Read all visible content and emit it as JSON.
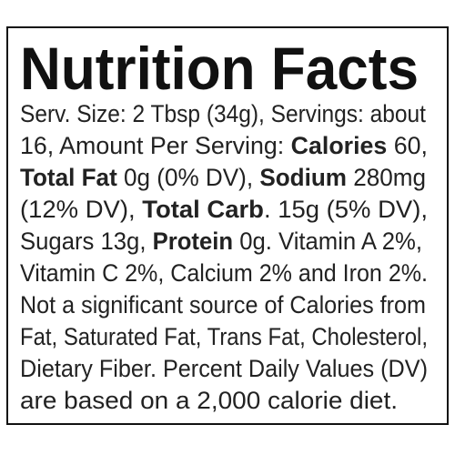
{
  "title": "Nutrition Facts",
  "lines": [
    [
      {
        "text": "Serv. Size: 2 Tbsp (34g), Servings: about"
      }
    ],
    [
      {
        "text": "16, Amount Per Serving: "
      },
      {
        "text": "Calories",
        "bold": true
      },
      {
        "text": " 60,"
      }
    ],
    [
      {
        "text": "Total Fat",
        "bold": true
      },
      {
        "text": " 0g (0% DV), "
      },
      {
        "text": "Sodium",
        "bold": true
      },
      {
        "text": " 280mg"
      }
    ],
    [
      {
        "text": "(12% DV), "
      },
      {
        "text": "Total Carb",
        "bold": true
      },
      {
        "text": ". 15g (5% DV),"
      }
    ],
    [
      {
        "text": "Sugars 13g, "
      },
      {
        "text": "Protein",
        "bold": true
      },
      {
        "text": " 0g. Vitamin A 2%,"
      }
    ],
    [
      {
        "text": "Vitamin C 2%, Calcium 2% and Iron 2%."
      }
    ],
    [
      {
        "text": "Not a significant source of Calories from"
      }
    ],
    [
      {
        "text": "Fat, Saturated Fat, Trans Fat, Cholesterol,"
      }
    ],
    [
      {
        "text": "Dietary Fiber. Percent Daily Values (DV)"
      }
    ],
    [
      {
        "text": "are based on a 2,000 calorie diet."
      }
    ]
  ]
}
